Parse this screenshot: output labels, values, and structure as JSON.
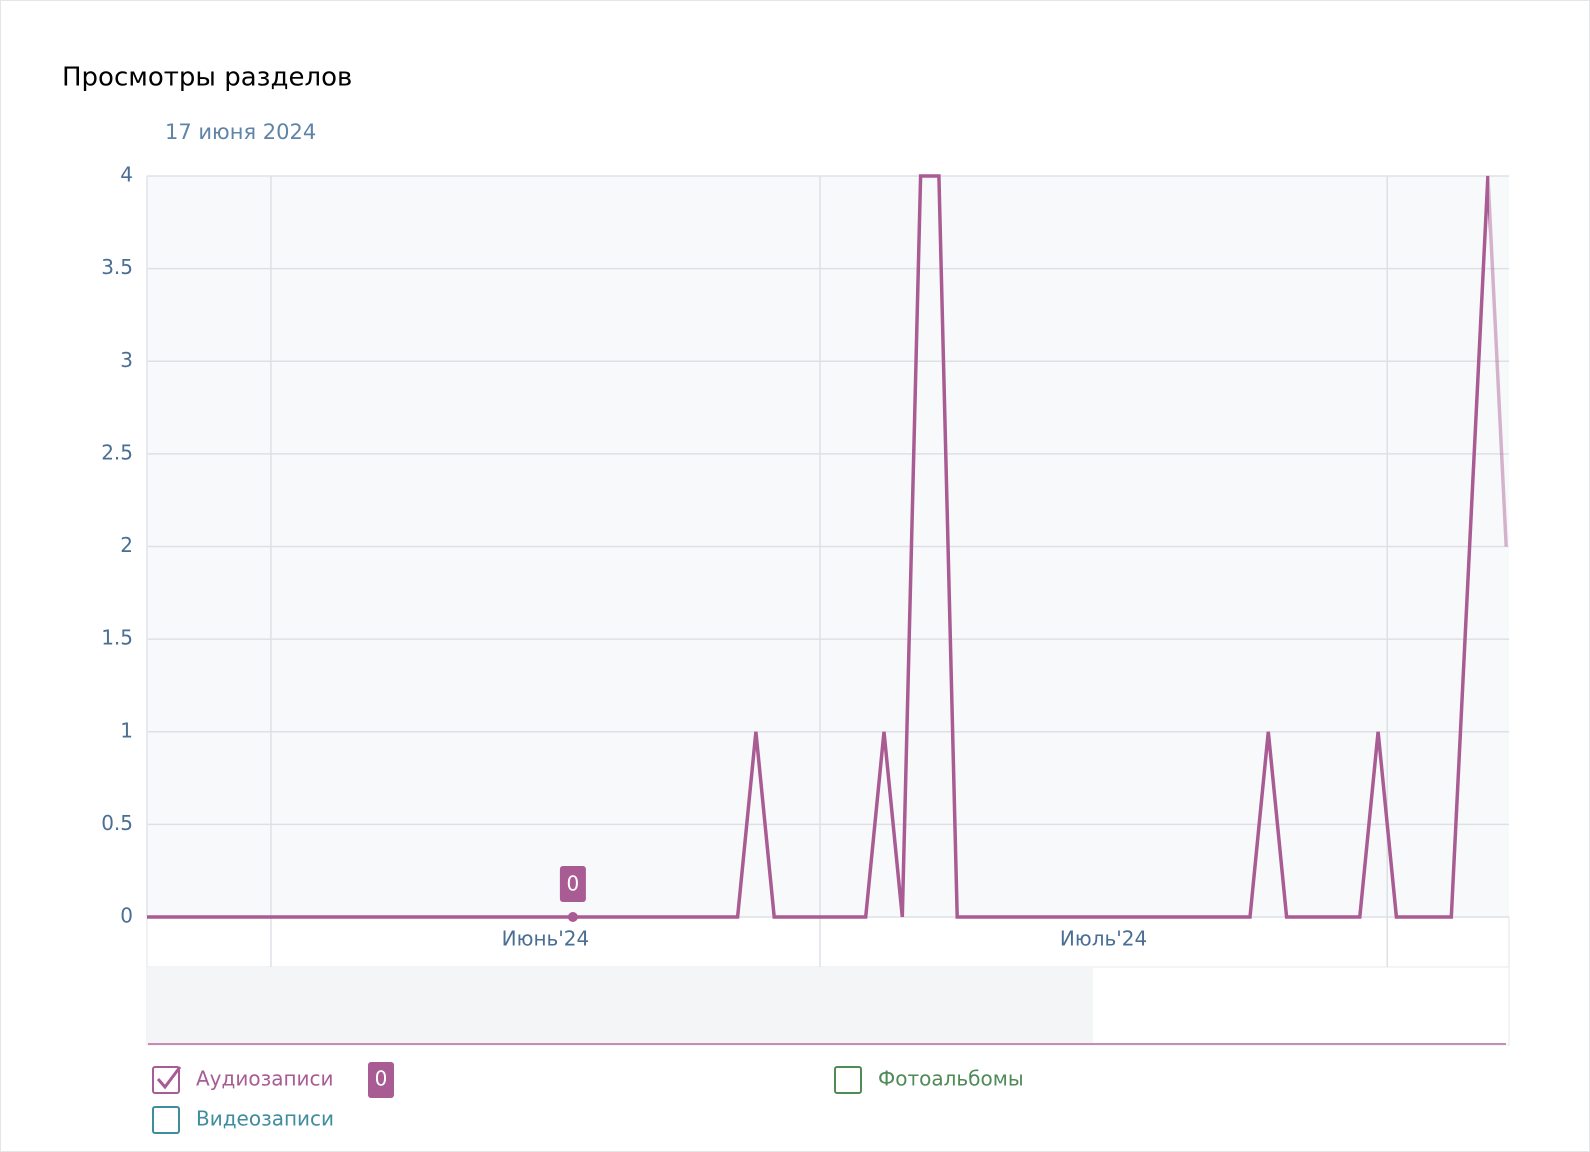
{
  "chart_data": {
    "type": "line",
    "title": "Просмотры разделов",
    "highlighted_date": "17 июня 2024",
    "month_labels": [
      "Июнь'24",
      "Июль'24"
    ],
    "series": [
      {
        "name": "Аудиозаписи",
        "color": "#a85c93",
        "checked": true,
        "values": [
          0,
          0,
          0,
          0,
          0,
          0,
          0,
          0,
          0,
          0,
          0,
          0,
          0,
          0,
          0,
          0,
          0,
          0,
          0,
          0,
          0,
          0,
          0,
          0,
          0,
          0,
          0,
          0,
          0,
          0,
          0,
          0,
          0,
          1,
          0,
          0,
          0,
          0,
          0,
          0,
          1,
          0,
          4,
          4,
          0,
          0,
          0,
          0,
          0,
          0,
          0,
          0,
          0,
          0,
          0,
          0,
          0,
          0,
          0,
          0,
          0,
          1,
          0,
          0,
          0,
          0,
          0,
          1,
          0,
          0,
          0,
          0,
          2,
          4,
          2
        ]
      }
    ],
    "legend_items": [
      {
        "name": "Фотоальбомы",
        "color": "#4f8a57",
        "checked": false
      },
      {
        "name": "Видеозаписи",
        "color": "#3f8c9e",
        "checked": false
      }
    ],
    "ylim": [
      0,
      4
    ],
    "yticks": [
      0,
      0.5,
      1,
      1.5,
      2,
      2.5,
      3,
      3.5,
      4
    ],
    "grid": true
  }
}
